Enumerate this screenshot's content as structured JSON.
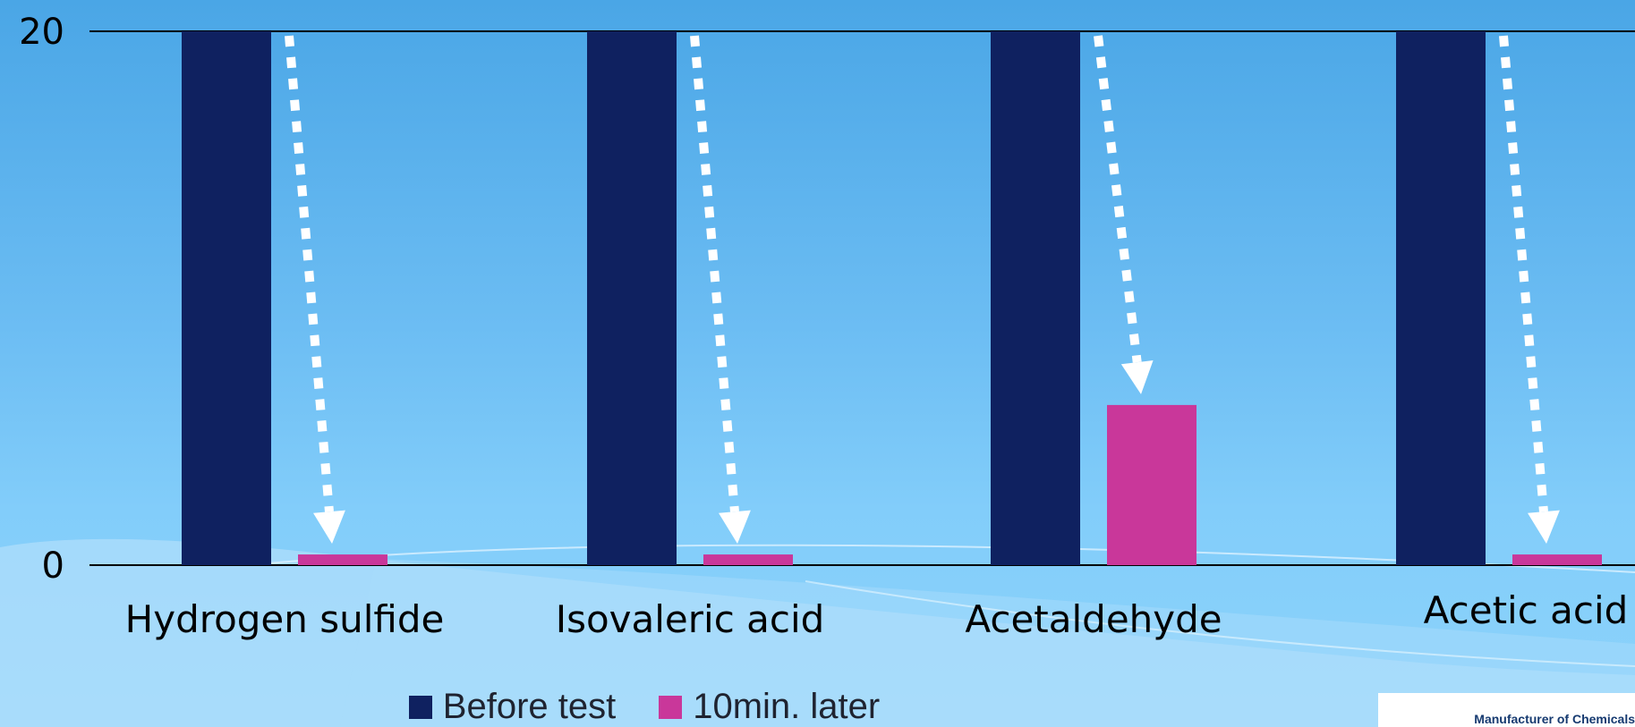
{
  "chart_data": {
    "type": "bar",
    "categories": [
      "Hydrogen sulfide",
      "Isovaleric acid",
      "Acetaldehyde",
      "Acetic acid"
    ],
    "series": [
      {
        "name": "Before test",
        "values": [
          20,
          20,
          20,
          20
        ],
        "color": "#0f2160"
      },
      {
        "name": "10min. later",
        "values": [
          0.4,
          0.4,
          6,
          0.4
        ],
        "color": "#c9379a"
      }
    ],
    "y_ticks": [
      "0",
      "20"
    ],
    "ylim": [
      0,
      20
    ],
    "annotations": "dotted white arrows from each Before test bar top down to the 10min. later bar",
    "legend_position": "bottom"
  },
  "footer": {
    "text": "Manufacturer of Chemicals"
  },
  "colors": {
    "axis_line": "#000000",
    "arrow": "#ffffff",
    "background_top": "#4aa6e6",
    "background_bottom": "#8dd3fb"
  }
}
